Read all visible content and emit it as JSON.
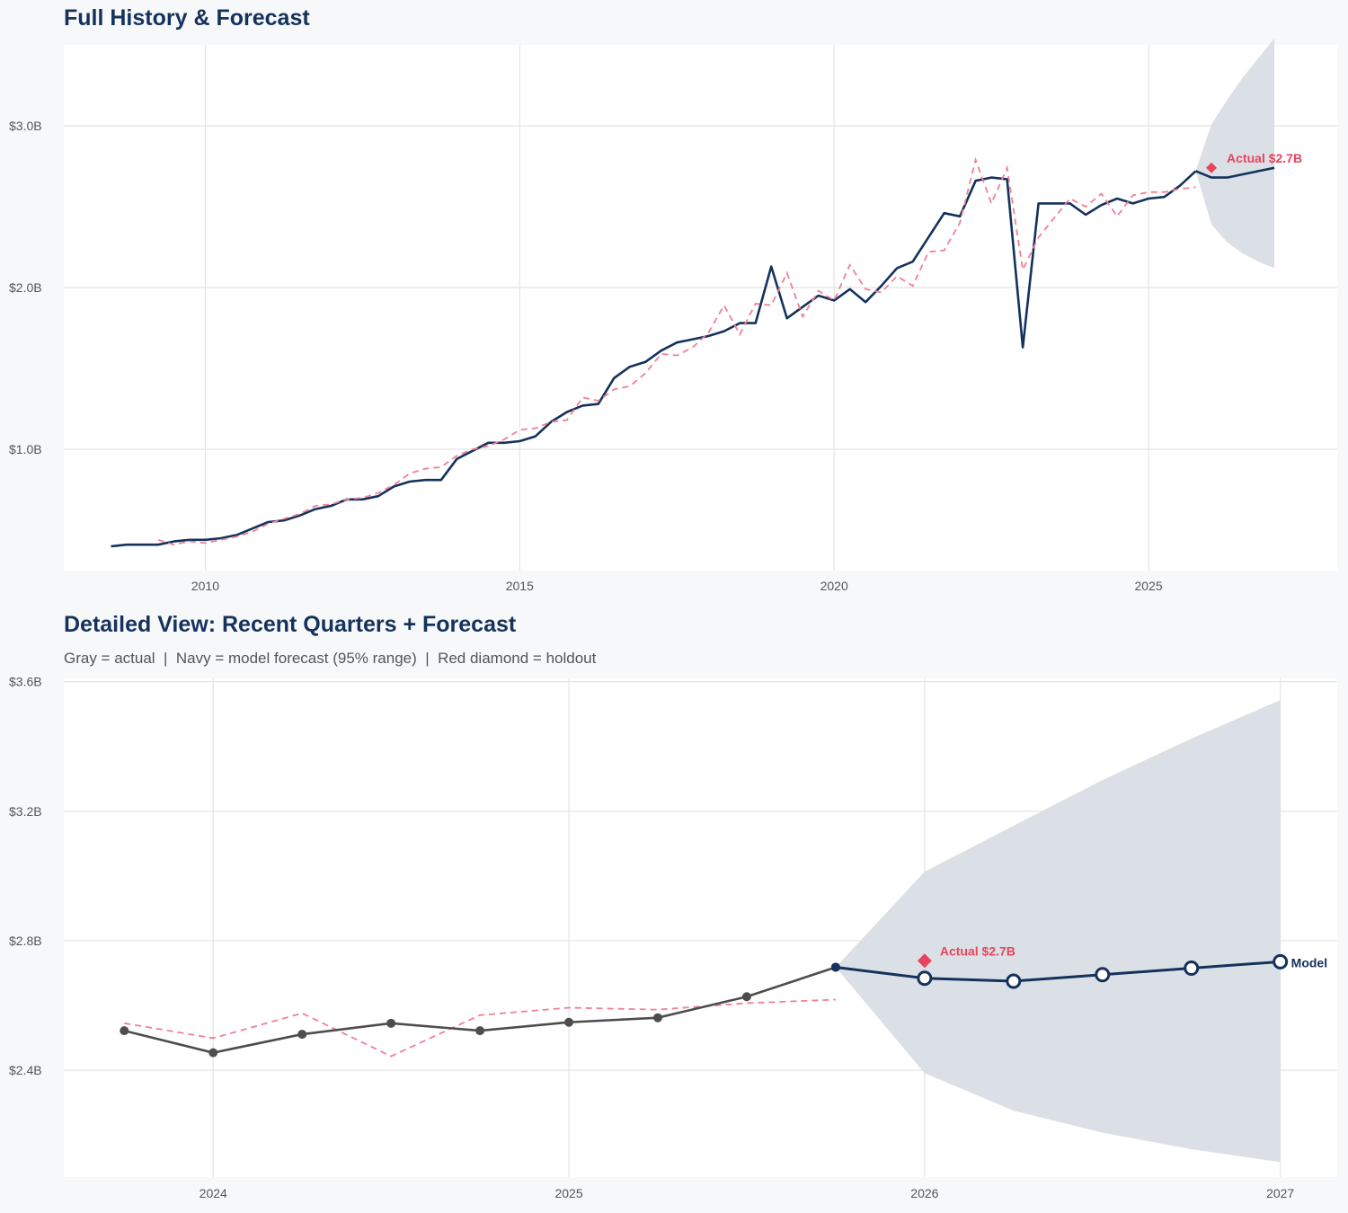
{
  "colors": {
    "navy": "#14325c",
    "gray": "#4d4d4d",
    "red": "#e8445e",
    "red_dashed": "#f08095",
    "band": "#d9dee5",
    "grid": "#e4e4e4",
    "plot_bg": "#ffffff",
    "page_bg": "#f7f8fa"
  },
  "chart_data": [
    {
      "type": "line",
      "title": "Full History & Forecast",
      "xlim": [
        2007.75,
        2028.0
      ],
      "ylim": [
        0.25,
        3.5
      ],
      "x_ticks": [
        2010,
        2015,
        2020,
        2025
      ],
      "x_tick_labels": [
        "2010",
        "2015",
        "2020",
        "2025"
      ],
      "y_ticks": [
        1.0,
        2.0,
        3.0
      ],
      "y_tick_labels": [
        "$1.0B",
        "$2.0B",
        "$3.0B"
      ],
      "grid": true,
      "series": [
        {
          "style": "navy-solid",
          "x": [
            2008.5,
            2008.75,
            2009,
            2009.25,
            2009.5,
            2009.75,
            2010,
            2010.25,
            2010.5,
            2010.75,
            2011,
            2011.25,
            2011.5,
            2011.75,
            2012,
            2012.25,
            2012.5,
            2012.75,
            2013,
            2013.25,
            2013.5,
            2013.75,
            2014,
            2014.25,
            2014.5,
            2014.75,
            2015,
            2015.25,
            2015.5,
            2015.75,
            2016,
            2016.25,
            2016.5,
            2016.75,
            2017,
            2017.25,
            2017.5,
            2017.75,
            2018,
            2018.25,
            2018.5,
            2018.75,
            2019,
            2019.25,
            2019.5,
            2019.75,
            2020,
            2020.25,
            2020.5,
            2020.75,
            2021,
            2021.25,
            2021.5,
            2021.75,
            2022,
            2022.25,
            2022.5,
            2022.75,
            2023,
            2023.25,
            2023.5,
            2023.75,
            2024,
            2024.25,
            2024.5,
            2024.75,
            2025,
            2025.25,
            2025.5,
            2025.75
          ],
          "values": [
            0.4,
            0.41,
            0.41,
            0.41,
            0.43,
            0.44,
            0.44,
            0.45,
            0.47,
            0.51,
            0.55,
            0.56,
            0.59,
            0.63,
            0.65,
            0.69,
            0.69,
            0.71,
            0.77,
            0.8,
            0.81,
            0.81,
            0.94,
            0.99,
            1.04,
            1.04,
            1.05,
            1.08,
            1.17,
            1.23,
            1.27,
            1.28,
            1.44,
            1.51,
            1.54,
            1.61,
            1.66,
            1.68,
            1.7,
            1.73,
            1.78,
            1.78,
            2.13,
            1.81,
            1.88,
            1.95,
            1.92,
            1.99,
            1.91,
            2.01,
            2.12,
            2.16,
            2.31,
            2.46,
            2.44,
            2.66,
            2.68,
            2.67,
            1.63,
            2.52,
            2.52,
            2.52,
            2.45,
            2.51,
            2.55,
            2.52,
            2.55,
            2.56,
            2.63,
            2.72
          ]
        },
        {
          "style": "red-dashed",
          "x": [
            2009.25,
            2009.5,
            2009.75,
            2010,
            2010.25,
            2010.5,
            2010.75,
            2011,
            2011.25,
            2011.5,
            2011.75,
            2012,
            2012.25,
            2012.5,
            2012.75,
            2013,
            2013.25,
            2013.5,
            2013.75,
            2014,
            2014.25,
            2014.5,
            2014.75,
            2015,
            2015.25,
            2015.5,
            2015.75,
            2016,
            2016.25,
            2016.5,
            2016.75,
            2017,
            2017.25,
            2017.5,
            2017.75,
            2018,
            2018.25,
            2018.5,
            2018.75,
            2019,
            2019.25,
            2019.5,
            2019.75,
            2020,
            2020.25,
            2020.5,
            2020.75,
            2021,
            2021.25,
            2021.5,
            2021.75,
            2022,
            2022.25,
            2022.5,
            2022.75,
            2023,
            2023.25,
            2023.5,
            2023.75,
            2024,
            2024.25,
            2024.5,
            2024.75,
            2025,
            2025.25,
            2025.5,
            2025.75
          ],
          "values": [
            0.44,
            0.41,
            0.43,
            0.42,
            0.44,
            0.46,
            0.49,
            0.54,
            0.57,
            0.6,
            0.65,
            0.66,
            0.69,
            0.7,
            0.73,
            0.78,
            0.85,
            0.88,
            0.89,
            0.96,
            1.0,
            1.02,
            1.06,
            1.12,
            1.13,
            1.17,
            1.18,
            1.32,
            1.3,
            1.37,
            1.39,
            1.47,
            1.59,
            1.58,
            1.63,
            1.72,
            1.89,
            1.71,
            1.9,
            1.89,
            2.09,
            1.82,
            1.98,
            1.92,
            2.14,
            1.99,
            1.97,
            2.07,
            2.01,
            2.22,
            2.23,
            2.4,
            2.79,
            2.52,
            2.74,
            2.11,
            2.31,
            2.43,
            2.55,
            2.5,
            2.58,
            2.44,
            2.57,
            2.59,
            2.59,
            2.61,
            2.62
          ]
        },
        {
          "style": "navy-forecast",
          "x": [
            2025.75,
            2026,
            2026.25,
            2026.5,
            2026.75,
            2027
          ],
          "values": [
            2.72,
            2.68,
            2.68,
            2.7,
            2.72,
            2.74
          ]
        }
      ],
      "band": {
        "x": [
          2025.75,
          2026,
          2026.25,
          2026.5,
          2026.75,
          2027
        ],
        "upper": [
          2.72,
          3.01,
          3.16,
          3.3,
          3.42,
          3.54
        ],
        "lower": [
          2.72,
          2.39,
          2.28,
          2.21,
          2.16,
          2.12
        ]
      },
      "holdout": {
        "x": 2026.0,
        "value": 2.74,
        "label": "Actual $2.7B"
      }
    },
    {
      "type": "line",
      "title": "Detailed View: Recent Quarters + Forecast",
      "subtitle": "Gray = actual  |  Navy = model forecast (95% range)  |  Red diamond = holdout",
      "xlim": [
        2023.58,
        2027.16
      ],
      "ylim": [
        2.07,
        3.61
      ],
      "x_ticks": [
        2024,
        2025,
        2026,
        2027
      ],
      "x_tick_labels": [
        "2024",
        "2025",
        "2026",
        "2027"
      ],
      "y_ticks": [
        2.4,
        2.8,
        3.2,
        3.6
      ],
      "y_tick_labels": [
        "$2.4B",
        "$2.8B",
        "$3.2B",
        "$3.6B"
      ],
      "grid": true,
      "series": [
        {
          "style": "red-dashed",
          "x": [
            2023.75,
            2024,
            2024.25,
            2024.5,
            2024.75,
            2025,
            2025.25,
            2025.5,
            2025.75
          ],
          "values": [
            2.545,
            2.499,
            2.576,
            2.443,
            2.57,
            2.593,
            2.587,
            2.607,
            2.618
          ]
        },
        {
          "style": "gray-markers",
          "x": [
            2023.75,
            2024,
            2024.25,
            2024.5,
            2024.75,
            2025,
            2025.25,
            2025.5,
            2025.75
          ],
          "values": [
            2.522,
            2.454,
            2.511,
            2.545,
            2.522,
            2.548,
            2.562,
            2.627,
            2.718
          ]
        },
        {
          "style": "navy-hollow-markers",
          "end_label": "Model",
          "x": [
            2025.75,
            2026,
            2026.25,
            2026.5,
            2026.75,
            2027
          ],
          "values": [
            2.718,
            2.684,
            2.675,
            2.695,
            2.715,
            2.735
          ]
        }
      ],
      "band": {
        "x": [
          2025.75,
          2026,
          2026.25,
          2026.5,
          2026.75,
          2027
        ],
        "upper": [
          2.718,
          3.013,
          3.155,
          3.296,
          3.424,
          3.543
        ],
        "lower": [
          2.718,
          2.391,
          2.275,
          2.207,
          2.156,
          2.116
        ]
      },
      "holdout": {
        "x": 2026.0,
        "value": 2.738,
        "label": "Actual $2.7B"
      }
    }
  ]
}
